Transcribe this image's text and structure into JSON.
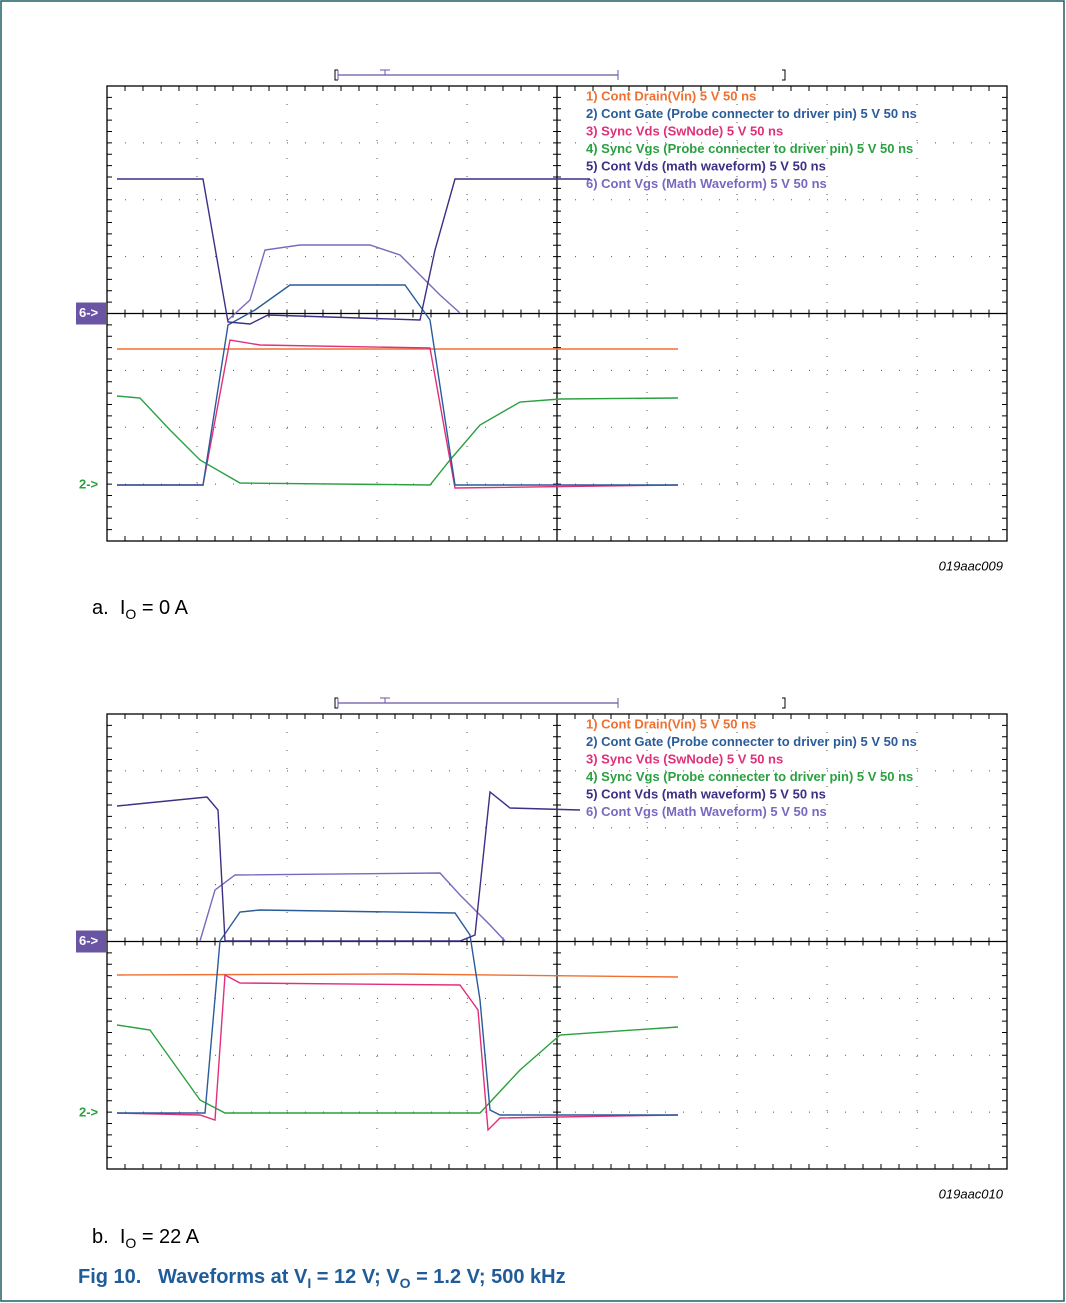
{
  "figure": {
    "panels": [
      {
        "legend": [
          "1) Cont Drain(Vin) 5 V 50 ns",
          "2) Cont Gate (Probe connecter to driver pin) 5 V 50 ns",
          "3) Sync Vds (SwNode) 5 V 50 ns",
          "4) Sync Vgs (Probe connecter to driver pin) 5 V 50 ns",
          "5) Cont Vds (math waveform) 5 V 50 ns",
          "6) Cont Vgs (Math Waveform) 5 V 50 ns"
        ],
        "markers": [
          "6->",
          "2->"
        ],
        "image_id": "019aac009",
        "caption": {
          "label": "a.",
          "var": "I",
          "sub": "O",
          "rest": " = 0 A"
        }
      },
      {
        "legend": [
          "1) Cont Drain(Vin) 5 V 50 ns",
          "2) Cont Gate (Probe connecter to driver pin) 5 V 50 ns",
          "3) Sync Vds (SwNode) 5 V 50 ns",
          "4) Sync Vgs (Probe connecter to driver pin) 5 V 50 ns",
          "5) Cont Vds (math waveform) 5 V 50 ns",
          "6) Cont Vgs (Math Waveform) 5 V 50 ns"
        ],
        "markers": [
          "6->",
          "2->"
        ],
        "image_id": "019aac010",
        "caption": {
          "label": "b.",
          "var": "I",
          "sub": "O",
          "rest": " = 22 A"
        }
      }
    ],
    "title": {
      "number": "Fig 10.",
      "t1": "Waveforms at V",
      "s1": "I",
      "t2": " = 12 V; V",
      "s2": "O",
      "t3": " = 1.2 V; 500 kHz"
    }
  }
}
